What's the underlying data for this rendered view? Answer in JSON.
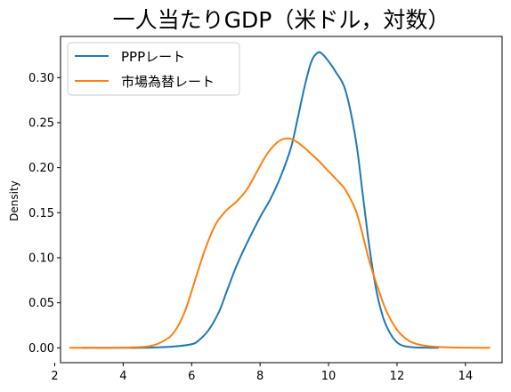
{
  "chart_data": {
    "type": "line",
    "title": "一人当たりGDP（米ドル，対数）",
    "xlabel": "",
    "ylabel": "Density",
    "xlim": [
      2.17,
      15.07
    ],
    "ylim": [
      -0.0165,
      0.3457
    ],
    "xticks": [
      2,
      4,
      6,
      8,
      10,
      12,
      14
    ],
    "yticks": [
      0.0,
      0.05,
      0.1,
      0.15,
      0.2,
      0.25,
      0.3
    ],
    "xtick_labels": [
      "2",
      "4",
      "6",
      "8",
      "10",
      "12",
      "14"
    ],
    "ytick_labels": [
      "0.00",
      "0.05",
      "0.10",
      "0.15",
      "0.20",
      "0.25",
      "0.30"
    ],
    "grid": false,
    "legend_position": "top-left",
    "series": [
      {
        "name": "PPPレート",
        "color": "#1f77b4",
        "x": [
          2.8,
          3.5,
          4.0,
          4.5,
          5.0,
          5.5,
          6.0,
          6.2,
          6.5,
          6.8,
          7.0,
          7.3,
          7.6,
          8.0,
          8.3,
          8.6,
          8.9,
          9.1,
          9.3,
          9.5,
          9.7,
          9.85,
          10.0,
          10.2,
          10.5,
          10.8,
          11.0,
          11.2,
          11.4,
          11.6,
          11.8,
          12.0,
          12.2,
          12.5,
          12.8,
          13.2
        ],
        "y": [
          0.0,
          0.0,
          0.0,
          0.0,
          0.0005,
          0.0015,
          0.004,
          0.008,
          0.02,
          0.04,
          0.06,
          0.09,
          0.115,
          0.145,
          0.165,
          0.19,
          0.222,
          0.255,
          0.29,
          0.318,
          0.328,
          0.325,
          0.318,
          0.307,
          0.285,
          0.23,
          0.17,
          0.11,
          0.063,
          0.033,
          0.016,
          0.006,
          0.002,
          0.0005,
          0.0001,
          0.0
        ]
      },
      {
        "name": "市場為替レート",
        "color": "#ff7f0e",
        "x": [
          2.45,
          3.2,
          3.8,
          4.3,
          4.8,
          5.2,
          5.5,
          5.8,
          6.1,
          6.4,
          6.7,
          7.0,
          7.3,
          7.6,
          7.9,
          8.2,
          8.5,
          8.7,
          8.9,
          9.1,
          9.3,
          9.5,
          9.7,
          9.9,
          10.1,
          10.3,
          10.5,
          10.8,
          11.0,
          11.2,
          11.5,
          11.7,
          12.0,
          12.3,
          12.6,
          13.0,
          13.5,
          14.0,
          14.7
        ],
        "y": [
          0.0,
          0.0,
          0.0,
          0.0005,
          0.002,
          0.008,
          0.018,
          0.04,
          0.075,
          0.11,
          0.137,
          0.152,
          0.162,
          0.175,
          0.195,
          0.215,
          0.228,
          0.232,
          0.232,
          0.228,
          0.222,
          0.215,
          0.208,
          0.2,
          0.192,
          0.184,
          0.175,
          0.152,
          0.125,
          0.095,
          0.06,
          0.04,
          0.02,
          0.009,
          0.004,
          0.0015,
          0.0005,
          0.0001,
          0.0
        ]
      }
    ]
  }
}
